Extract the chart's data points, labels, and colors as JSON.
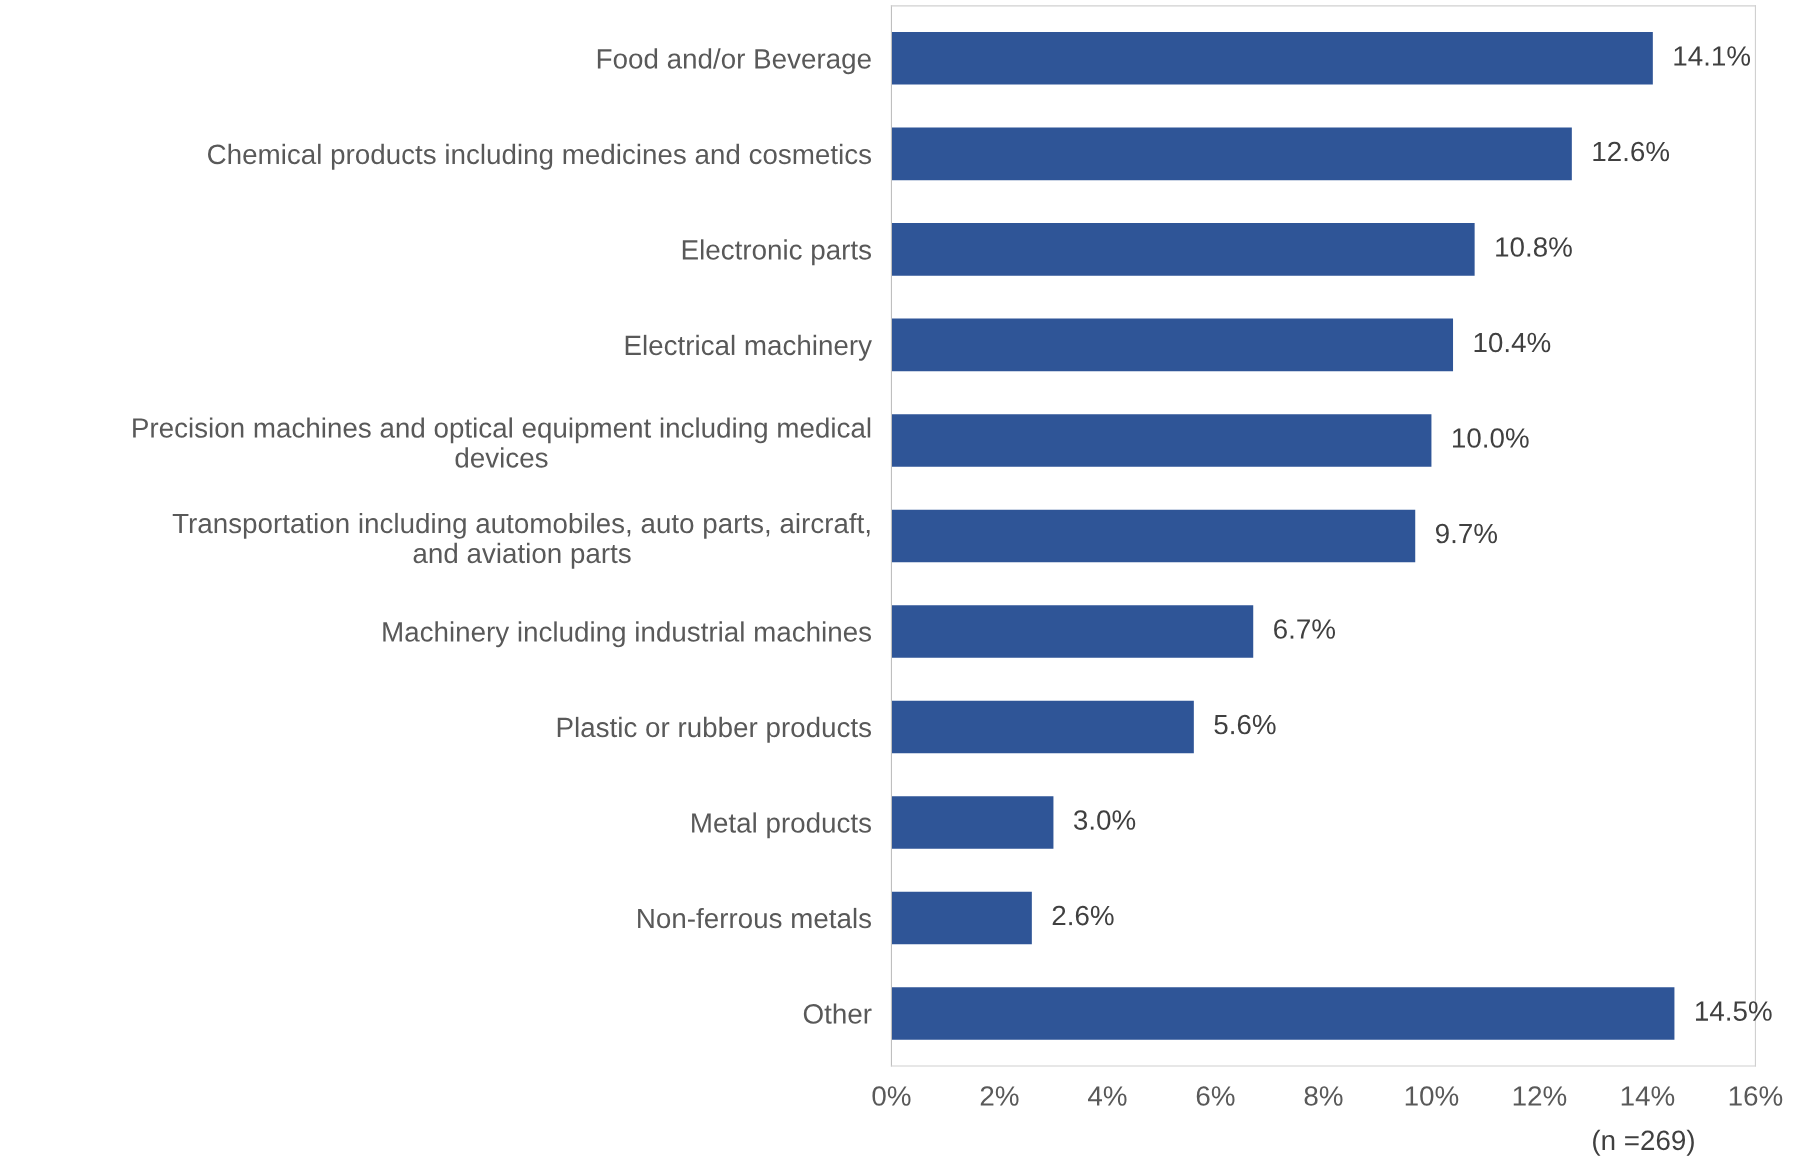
{
  "chart_data": {
    "type": "bar",
    "orientation": "horizontal",
    "categories": [
      "Food and/or Beverage",
      "Chemical products including medicines and cosmetics",
      "Electronic parts",
      "Electrical machinery",
      "Precision machines and optical equipment including medical\ndevices",
      "Transportation including automobiles, auto parts, aircraft,\nand aviation parts",
      "Machinery including industrial machines",
      "Plastic or rubber products",
      "Metal products",
      "Non-ferrous metals",
      "Other"
    ],
    "values": [
      14.1,
      12.6,
      10.8,
      10.4,
      10.0,
      9.7,
      6.7,
      5.6,
      3.0,
      2.6,
      14.5
    ],
    "value_labels": [
      "14.1%",
      "12.6%",
      "10.8%",
      "10.4%",
      "10.0%",
      "9.7%",
      "6.7%",
      "5.6%",
      "3.0%",
      "2.6%",
      "14.5%"
    ],
    "color": "#2f5597",
    "xlim": [
      0,
      16
    ],
    "xticks": [
      {
        "value": 0,
        "label": "0%"
      },
      {
        "value": 2,
        "label": "2%"
      },
      {
        "value": 4,
        "label": "4%"
      },
      {
        "value": 6,
        "label": "6%"
      },
      {
        "value": 8,
        "label": "8%"
      },
      {
        "value": 10,
        "label": "10%"
      },
      {
        "value": 12,
        "label": "12%"
      },
      {
        "value": 14,
        "label": "14%"
      },
      {
        "value": 16,
        "label": "16%"
      }
    ],
    "grid": false,
    "legend": false,
    "annotations": [
      "(n =269)"
    ]
  }
}
